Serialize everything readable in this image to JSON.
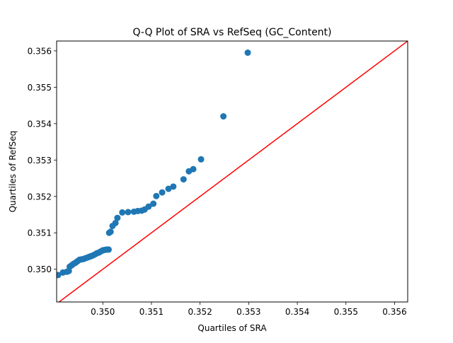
{
  "chart_data": {
    "type": "scatter",
    "title": "Q-Q Plot of SRA vs RefSeq (GC_Content)",
    "xlabel": "Quartiles of SRA",
    "ylabel": "Quartiles of RefSeq",
    "xlim": [
      0.34905,
      0.35627
    ],
    "ylim": [
      0.3491,
      0.35627
    ],
    "xticks": [
      0.35,
      0.351,
      0.352,
      0.353,
      0.354,
      0.355,
      0.356
    ],
    "xtick_labels": [
      "0.350",
      "0.351",
      "0.352",
      "0.353",
      "0.354",
      "0.355",
      "0.356"
    ],
    "yticks": [
      0.35,
      0.351,
      0.352,
      0.353,
      0.354,
      0.355,
      0.356
    ],
    "ytick_labels": [
      "0.350",
      "0.351",
      "0.352",
      "0.353",
      "0.354",
      "0.355",
      "0.356"
    ],
    "grid": false,
    "marker_color": "#1f77b4",
    "reference_line": {
      "x": [
        0.349,
        0.3563
      ],
      "y": [
        0.349,
        0.3563
      ],
      "color": "#ff0000"
    },
    "points": [
      [
        0.34908,
        0.34984
      ],
      [
        0.34918,
        0.34991
      ],
      [
        0.34926,
        0.34993
      ],
      [
        0.3493,
        0.34995
      ],
      [
        0.34932,
        0.35007
      ],
      [
        0.34936,
        0.35011
      ],
      [
        0.3494,
        0.35015
      ],
      [
        0.34944,
        0.35018
      ],
      [
        0.34948,
        0.35022
      ],
      [
        0.34952,
        0.35026
      ],
      [
        0.34956,
        0.35027
      ],
      [
        0.3496,
        0.35028
      ],
      [
        0.34964,
        0.3503
      ],
      [
        0.34968,
        0.35032
      ],
      [
        0.34972,
        0.35034
      ],
      [
        0.34976,
        0.35036
      ],
      [
        0.3498,
        0.35038
      ],
      [
        0.34984,
        0.35041
      ],
      [
        0.34988,
        0.35044
      ],
      [
        0.34992,
        0.35046
      ],
      [
        0.34996,
        0.35049
      ],
      [
        0.35,
        0.35052
      ],
      [
        0.35004,
        0.35053
      ],
      [
        0.35008,
        0.35054
      ],
      [
        0.35012,
        0.35054
      ],
      [
        0.35013,
        0.351
      ],
      [
        0.35016,
        0.35103
      ],
      [
        0.3502,
        0.35119
      ],
      [
        0.35026,
        0.35127
      ],
      [
        0.3503,
        0.35141
      ],
      [
        0.3504,
        0.35156
      ],
      [
        0.35052,
        0.35157
      ],
      [
        0.35064,
        0.35158
      ],
      [
        0.35072,
        0.3516
      ],
      [
        0.3508,
        0.35161
      ],
      [
        0.35086,
        0.35164
      ],
      [
        0.35094,
        0.35172
      ],
      [
        0.35104,
        0.3518
      ],
      [
        0.3511,
        0.35201
      ],
      [
        0.35122,
        0.35211
      ],
      [
        0.35135,
        0.35221
      ],
      [
        0.35145,
        0.35227
      ],
      [
        0.35166,
        0.35247
      ],
      [
        0.35177,
        0.35269
      ],
      [
        0.35186,
        0.35275
      ],
      [
        0.35202,
        0.35302
      ],
      [
        0.35248,
        0.3542
      ],
      [
        0.35298,
        0.35595
      ]
    ]
  }
}
